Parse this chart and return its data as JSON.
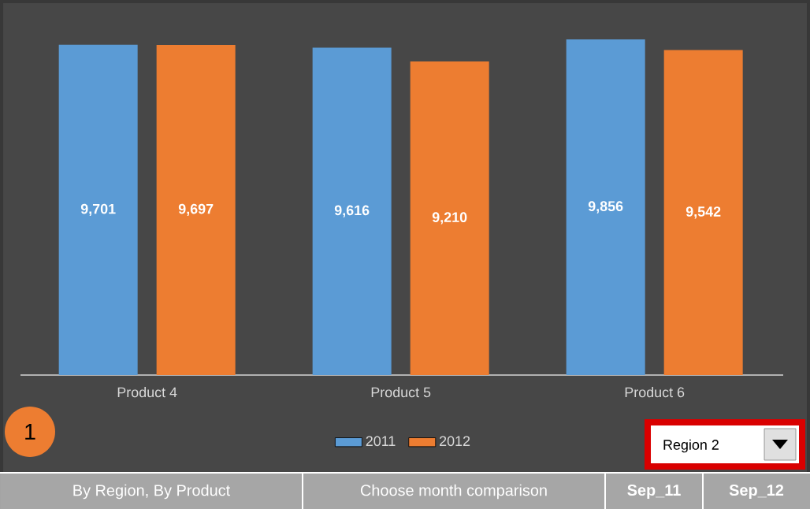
{
  "chart_data": {
    "type": "bar",
    "categories": [
      "Product 4",
      "Product 5",
      "Product 6"
    ],
    "series": [
      {
        "name": "2011",
        "color": "#5b9bd5",
        "values": [
          9701,
          9616,
          9856
        ],
        "value_labels": [
          "9,701",
          "9,616",
          "9,856"
        ]
      },
      {
        "name": "2012",
        "color": "#ed7d31",
        "values": [
          9697,
          9210,
          9542
        ],
        "value_labels": [
          "9,697",
          "9,210",
          "9,542"
        ]
      }
    ],
    "legend": "bottom",
    "annotations": [
      "1",
      "Region 2",
      "By Region, By Product",
      "Choose month comparison",
      "Sep_11",
      "Sep_12"
    ]
  }
}
